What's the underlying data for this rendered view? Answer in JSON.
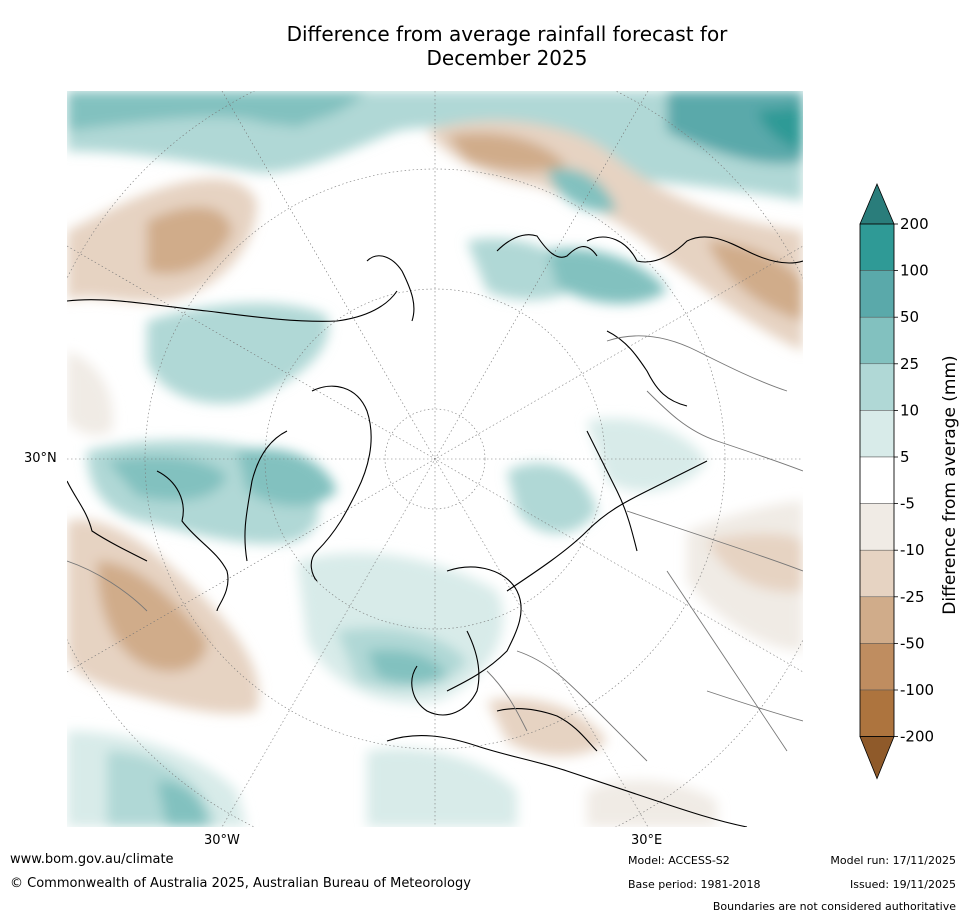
{
  "title_line1": "Difference from average rainfall forecast for",
  "title_line2": "December 2025",
  "map": {
    "lat_label": "30°N",
    "lon_labels": [
      "30°W",
      "30°E"
    ]
  },
  "colorbar": {
    "title": "Difference from average (mm)",
    "ticks": [
      "200",
      "100",
      "50",
      "25",
      "10",
      "5",
      "-5",
      "-10",
      "-25",
      "-50",
      "-100",
      "-200"
    ],
    "colors": [
      "#2a7d7b",
      "#2f9a96",
      "#5aa9aa",
      "#82c1bf",
      "#b0d8d6",
      "#d8ebe9",
      "#ffffff",
      "#f0ebe5",
      "#e6d3c2",
      "#d0ac8a",
      "#bf8d60",
      "#ad743e",
      "#8f5a2a"
    ]
  },
  "footer": {
    "url": "www.bom.gov.au/climate",
    "copyright": "© Commonwealth of Australia 2025, Australian Bureau of Meteorology",
    "model": "Model: ACCESS-S2",
    "base_period": "Base period: 1981-2018",
    "model_run": "Model run: 17/11/2025",
    "issued": "Issued: 19/11/2025",
    "disclaimer": "Boundaries are not considered authoritative"
  }
}
